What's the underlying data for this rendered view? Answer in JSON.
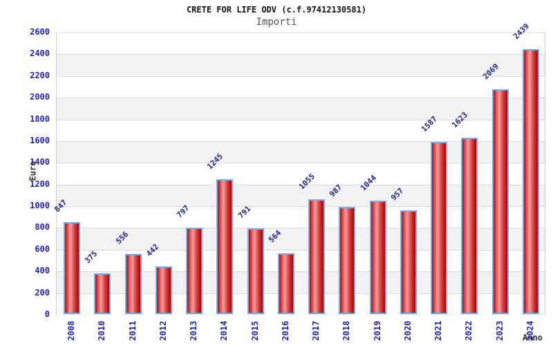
{
  "header": {
    "title": "CRETE FOR LIFE ODV (c.f.97412130581)",
    "subtitle": "Importi"
  },
  "chart_data": {
    "type": "bar",
    "title": "CRETE FOR LIFE ODV (c.f.97412130581)",
    "subtitle": "Importi",
    "xlabel": "Anno",
    "ylabel": "Euro",
    "categories": [
      "2008",
      "2010",
      "2011",
      "2012",
      "2013",
      "2014",
      "2015",
      "2016",
      "2017",
      "2018",
      "2019",
      "2020",
      "2021",
      "2022",
      "2023",
      "2024"
    ],
    "values": [
      847,
      375,
      556,
      442,
      797,
      1245,
      791,
      564,
      1055,
      987,
      1044,
      957,
      1587,
      1623,
      2069,
      2439
    ],
    "ylim": [
      0,
      2600
    ],
    "yticks": [
      0,
      200,
      400,
      600,
      800,
      1000,
      1200,
      1400,
      1600,
      1800,
      2000,
      2200,
      2400,
      2600
    ],
    "legend": "none",
    "grid": "horizontal bands every 200, alternating white and gray",
    "colors": {
      "bar_dark": "#9c0c0c",
      "bar_light": "#f2a0a0",
      "bar_border": "#72aeec",
      "tick_label_blue": "#2222cc",
      "value_label_navy": "#222299",
      "band_gray": "#f2f2f2",
      "band_white": "#ffffff",
      "grid_line": "#dcdcdc",
      "title_color": "#111111",
      "subtitle_color": "#555555",
      "axis_title_color": "#333333"
    }
  }
}
